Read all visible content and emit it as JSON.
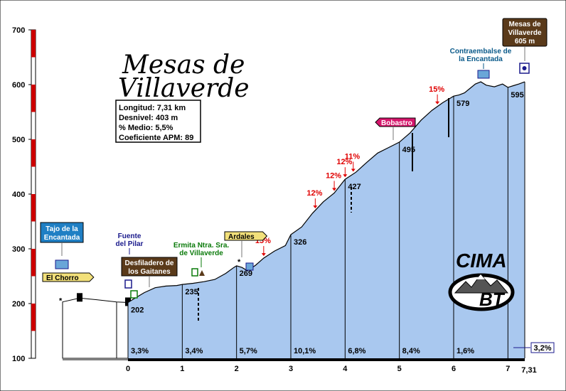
{
  "title_line1": "Mesas de",
  "title_line2": "Villaverde",
  "info": [
    {
      "label": "Longitud:",
      "value": "7,31 km"
    },
    {
      "label": "Desnivel:",
      "value": "403 m"
    },
    {
      "label": "% Medio:",
      "value": "5,5%"
    },
    {
      "label": "Coeficiente APM:",
      "value": "89"
    }
  ],
  "logo": {
    "top": "CIMA",
    "bottom": "BT"
  },
  "summit_box": {
    "line1": "Mesas de",
    "line2": "Villaverde",
    "line3": "605 m"
  },
  "chart_data": {
    "type": "area",
    "xlim": [
      -1.2,
      7.31
    ],
    "ylim": [
      100,
      700
    ],
    "yticks": [
      "100",
      "200",
      "300",
      "400",
      "500",
      "600",
      "700"
    ],
    "xticks": [
      "0",
      "1",
      "2",
      "3",
      "4",
      "5",
      "6",
      "7",
      "7,31"
    ],
    "profile": [
      [
        0,
        202
      ],
      [
        0.1,
        208
      ],
      [
        0.3,
        220
      ],
      [
        0.5,
        229
      ],
      [
        0.7,
        232
      ],
      [
        0.9,
        233
      ],
      [
        1,
        235
      ],
      [
        1.2,
        237
      ],
      [
        1.4,
        240
      ],
      [
        1.6,
        244
      ],
      [
        1.8,
        255
      ],
      [
        1.95,
        266
      ],
      [
        2,
        269
      ],
      [
        2.1,
        266
      ],
      [
        2.2,
        260
      ],
      [
        2.35,
        270
      ],
      [
        2.5,
        283
      ],
      [
        2.7,
        296
      ],
      [
        2.9,
        306
      ],
      [
        3,
        326
      ],
      [
        3.2,
        340
      ],
      [
        3.4,
        365
      ],
      [
        3.6,
        386
      ],
      [
        3.8,
        402
      ],
      [
        4,
        427
      ],
      [
        4.2,
        440
      ],
      [
        4.4,
        458
      ],
      [
        4.6,
        475
      ],
      [
        4.8,
        485
      ],
      [
        5,
        495
      ],
      [
        5.2,
        512
      ],
      [
        5.4,
        535
      ],
      [
        5.6,
        553
      ],
      [
        5.8,
        567
      ],
      [
        6,
        579
      ],
      [
        6.1,
        581
      ],
      [
        6.2,
        585
      ],
      [
        6.3,
        593
      ],
      [
        6.4,
        601
      ],
      [
        6.5,
        605
      ],
      [
        6.6,
        599
      ],
      [
        6.75,
        596
      ],
      [
        6.9,
        601
      ],
      [
        7,
        595
      ],
      [
        7.1,
        598
      ],
      [
        7.2,
        601
      ],
      [
        7.31,
        605
      ]
    ],
    "approach": [
      [
        -1.2,
        203
      ],
      [
        -0.9,
        210
      ],
      [
        -0.6,
        207
      ],
      [
        -0.3,
        203
      ],
      [
        0,
        202
      ]
    ],
    "segments": [
      {
        "from": 0,
        "to": 1,
        "gradient": "3,3%"
      },
      {
        "from": 1,
        "to": 2,
        "gradient": "3,4%"
      },
      {
        "from": 2,
        "to": 3,
        "gradient": "5,7%"
      },
      {
        "from": 3,
        "to": 4,
        "gradient": "10,1%"
      },
      {
        "from": 4,
        "to": 5,
        "gradient": "6,8%"
      },
      {
        "from": 5,
        "to": 6,
        "gradient": "8,4%"
      },
      {
        "from": 6,
        "to": 7,
        "gradient": "1,6%"
      },
      {
        "from": 7,
        "to": 7.31,
        "gradient": "3,2%"
      }
    ],
    "elevations": [
      {
        "x": 0,
        "y": 202,
        "label": "202"
      },
      {
        "x": 1,
        "y": 235,
        "label": "235"
      },
      {
        "x": 2,
        "y": 269,
        "label": "269"
      },
      {
        "x": 3,
        "y": 326,
        "label": "326"
      },
      {
        "x": 4,
        "y": 427,
        "label": "427"
      },
      {
        "x": 5,
        "y": 495,
        "label": "495"
      },
      {
        "x": 6,
        "y": 579,
        "label": "579"
      },
      {
        "x": 7,
        "y": 595,
        "label": "595"
      }
    ],
    "ramps": [
      {
        "x": 2.5,
        "y": 283,
        "label": "15%"
      },
      {
        "x": 3.45,
        "y": 370,
        "label": "12%"
      },
      {
        "x": 3.8,
        "y": 402,
        "label": "12%"
      },
      {
        "x": 4.0,
        "y": 427,
        "label": "12%"
      },
      {
        "x": 4.15,
        "y": 437,
        "label": "11%"
      },
      {
        "x": 5.7,
        "y": 560,
        "label": "15%"
      }
    ],
    "places": [
      {
        "name": "Tajo de la Encantada",
        "x": -1.0,
        "y": 205,
        "style": "blue-box"
      },
      {
        "name": "El Chorro",
        "x": -0.9,
        "y": 207,
        "style": "yellow-tag"
      },
      {
        "name": "Fuente del Pilar",
        "x": 0.02,
        "y": 203,
        "style": "navy-text"
      },
      {
        "name": "Desfiladero de los Gaitanes",
        "x": 0.4,
        "y": 225,
        "style": "brown-box"
      },
      {
        "name": "Ermita Ntra. Sra. de Villaverde",
        "x": 1.4,
        "y": 240,
        "style": "green-text"
      },
      {
        "name": "Ardales",
        "x": 2.15,
        "y": 268,
        "style": "yellow-tag"
      },
      {
        "name": "Bobastro",
        "x": 5.3,
        "y": 527,
        "style": "pink-tag"
      },
      {
        "name": "Contraembalse de la Encantada",
        "x": 6.55,
        "y": 602,
        "style": "teal-text"
      }
    ]
  }
}
